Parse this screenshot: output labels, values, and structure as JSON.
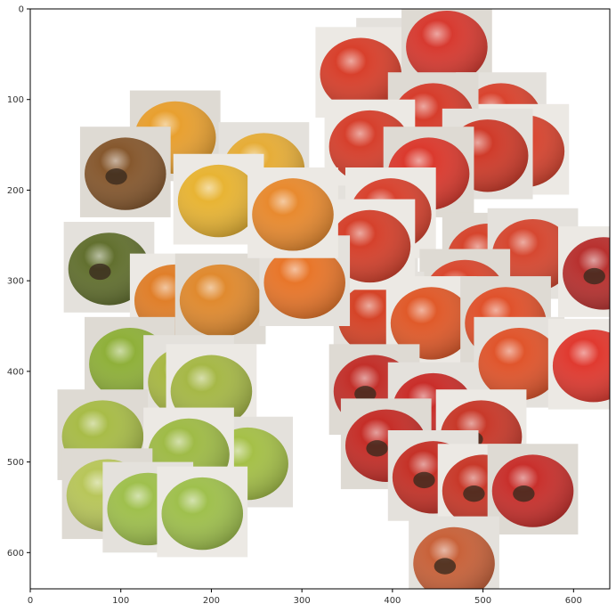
{
  "chart_data": {
    "type": "scatter",
    "title": "",
    "xlabel": "",
    "ylabel": "",
    "xlim": [
      0,
      640
    ],
    "ylim": [
      640,
      0
    ],
    "y_inverted": true,
    "grid": false,
    "x_ticks": [
      0,
      100,
      200,
      300,
      400,
      500,
      600
    ],
    "y_ticks": [
      0,
      100,
      200,
      300,
      400,
      500,
      600
    ],
    "tile_size": 100,
    "points": [
      {
        "x": 410,
        "y": 60,
        "color": "#d93a2b",
        "name": "red-tomato"
      },
      {
        "x": 365,
        "y": 70,
        "color": "#d8402c",
        "name": "red-tomato"
      },
      {
        "x": 460,
        "y": 40,
        "color": "#d73a30",
        "name": "red-tomato"
      },
      {
        "x": 520,
        "y": 120,
        "color": "#d9442f",
        "name": "red-tomato"
      },
      {
        "x": 545,
        "y": 155,
        "color": "#d8442f",
        "name": "red-tomato"
      },
      {
        "x": 445,
        "y": 120,
        "color": "#d63d2c",
        "name": "red-tomato"
      },
      {
        "x": 505,
        "y": 160,
        "color": "#cf3b2a",
        "name": "red-tomato"
      },
      {
        "x": 375,
        "y": 150,
        "color": "#d6402d",
        "name": "red-tomato"
      },
      {
        "x": 440,
        "y": 180,
        "color": "#db3a2e",
        "name": "red-tomato"
      },
      {
        "x": 378,
        "y": 245,
        "color": "#d8432f",
        "name": "red-tomato"
      },
      {
        "x": 398,
        "y": 225,
        "color": "#d8432f",
        "name": "red-tomato"
      },
      {
        "x": 505,
        "y": 275,
        "color": "#d6452d",
        "name": "red-tomato"
      },
      {
        "x": 555,
        "y": 270,
        "color": "#d64831",
        "name": "red-tomato"
      },
      {
        "x": 633,
        "y": 290,
        "color": "#b8312f",
        "name": "cracked-red-tomato"
      },
      {
        "x": 480,
        "y": 315,
        "color": "#d9482f",
        "name": "red-tomato"
      },
      {
        "x": 385,
        "y": 340,
        "color": "#d54428",
        "name": "red-tomato"
      },
      {
        "x": 443,
        "y": 345,
        "color": "#e05a2a",
        "name": "red-tomato"
      },
      {
        "x": 525,
        "y": 345,
        "color": "#e0522c",
        "name": "red-tomato"
      },
      {
        "x": 540,
        "y": 390,
        "color": "#e0552c",
        "name": "red-tomato"
      },
      {
        "x": 622,
        "y": 392,
        "color": "#e03a30",
        "name": "red-tomato"
      },
      {
        "x": 380,
        "y": 420,
        "color": "#c2302a",
        "name": "blighted-red-tomato"
      },
      {
        "x": 445,
        "y": 440,
        "color": "#c92e2a",
        "name": "red-tomato"
      },
      {
        "x": 498,
        "y": 470,
        "color": "#c8392a",
        "name": "blighted-red-tomato"
      },
      {
        "x": 393,
        "y": 480,
        "color": "#c52e28",
        "name": "blighted-red-tomato"
      },
      {
        "x": 445,
        "y": 515,
        "color": "#c53228",
        "name": "blighted-red-tomato"
      },
      {
        "x": 500,
        "y": 530,
        "color": "#c8392a",
        "name": "blighted-red-tomato"
      },
      {
        "x": 555,
        "y": 530,
        "color": "#c8302c",
        "name": "blighted-red-tomato"
      },
      {
        "x": 468,
        "y": 610,
        "color": "#c8623a",
        "name": "blighted-orange-tomato"
      },
      {
        "x": 375,
        "y": 260,
        "color": "#d5412c",
        "name": "red-tomato"
      },
      {
        "x": 160,
        "y": 140,
        "color": "#e8a030",
        "name": "yellow-orange-tomato"
      },
      {
        "x": 258,
        "y": 175,
        "color": "#e6ad38",
        "name": "yellow-tomato"
      },
      {
        "x": 208,
        "y": 210,
        "color": "#e8b434",
        "name": "yellow-tomato"
      },
      {
        "x": 105,
        "y": 180,
        "color": "#86582e",
        "name": "rotten-brown-tomato"
      },
      {
        "x": 87,
        "y": 285,
        "color": "#62702f",
        "name": "rotten-green-tomato"
      },
      {
        "x": 160,
        "y": 320,
        "color": "#e07f2a",
        "name": "orange-tomato"
      },
      {
        "x": 210,
        "y": 320,
        "color": "#e08a2f",
        "name": "orange-tomato"
      },
      {
        "x": 303,
        "y": 300,
        "color": "#e8762a",
        "name": "orange-tomato"
      },
      {
        "x": 290,
        "y": 225,
        "color": "#e88a2f",
        "name": "orange-tomato"
      },
      {
        "x": 110,
        "y": 390,
        "color": "#8fb03a",
        "name": "green-tomato"
      },
      {
        "x": 175,
        "y": 410,
        "color": "#a8b844",
        "name": "green-tomato"
      },
      {
        "x": 200,
        "y": 420,
        "color": "#a6b847",
        "name": "green-tomato"
      },
      {
        "x": 80,
        "y": 470,
        "color": "#a8bc48",
        "name": "green-tomato"
      },
      {
        "x": 240,
        "y": 500,
        "color": "#a5c048",
        "name": "green-tomato"
      },
      {
        "x": 175,
        "y": 490,
        "color": "#9fbb47",
        "name": "green-tomato"
      },
      {
        "x": 85,
        "y": 535,
        "color": "#b8c65a",
        "name": "green-tomato"
      },
      {
        "x": 130,
        "y": 550,
        "color": "#9fc04d",
        "name": "green-tomato"
      },
      {
        "x": 190,
        "y": 555,
        "color": "#9fc04d",
        "name": "green-tomato"
      }
    ]
  }
}
